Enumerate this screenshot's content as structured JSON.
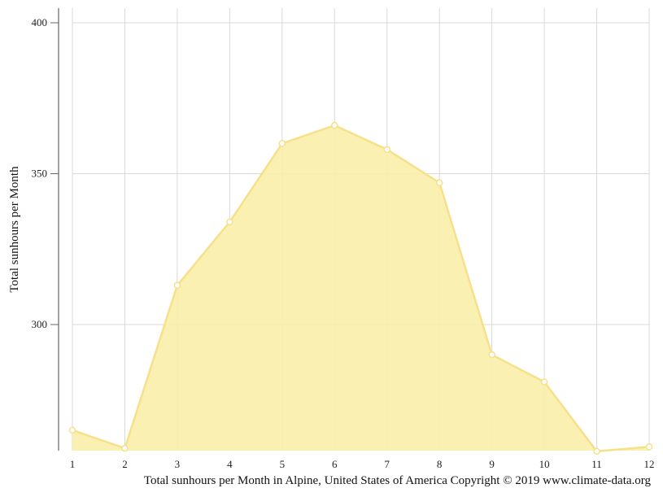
{
  "chart_data": {
    "type": "area",
    "title": "",
    "xlabel": "",
    "ylabel": "Total sunhours per Month",
    "caption": "Total sunhours per Month in Alpine, United States of America Copyright © 2019 www.climate-data.org",
    "x": [
      1,
      2,
      3,
      4,
      5,
      6,
      7,
      8,
      9,
      10,
      11,
      12
    ],
    "y_ticks": [
      300,
      350,
      400
    ],
    "ylim": [
      258,
      404
    ],
    "grid": true,
    "series": [
      {
        "name": "",
        "values": [
          265,
          259,
          313,
          334,
          360,
          366,
          358,
          347,
          290,
          281,
          258,
          259.5
        ]
      }
    ],
    "colors": {
      "fill": "#f9eeaa",
      "line": "#f7e08a",
      "marker_fill": "#ffffff",
      "grid": "#d9d9d9",
      "axis": "#666666"
    }
  }
}
